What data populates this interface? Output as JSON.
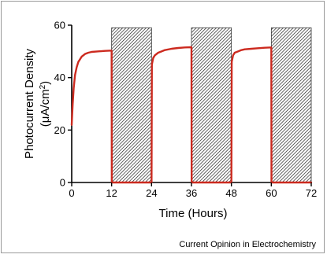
{
  "chart_data": {
    "type": "line",
    "xlabel": "Time (Hours)",
    "ylabel_line1": "Photocurrent Density",
    "ylabel_line2_prefix": "(μA/cm",
    "ylabel_line2_sup": "2",
    "ylabel_line2_suffix": ")",
    "xlim": [
      0,
      72
    ],
    "ylim": [
      0,
      60
    ],
    "x_ticks": [
      0,
      12,
      24,
      36,
      48,
      60,
      72
    ],
    "y_ticks": [
      0,
      20,
      40,
      60
    ],
    "grid": false,
    "dark_periods": [
      [
        12,
        24
      ],
      [
        36,
        48
      ],
      [
        60,
        72
      ]
    ],
    "dark_period_top": 59,
    "series": [
      {
        "color": "#cc2a1f",
        "x": [
          0,
          0.3,
          0.6,
          1.0,
          1.5,
          2.0,
          3.0,
          4.0,
          5.0,
          6.0,
          8.0,
          10.0,
          11.9,
          12,
          12.05,
          24,
          24.1,
          24.5,
          25,
          26,
          27,
          28,
          30,
          32,
          34,
          35.9,
          36,
          36.05,
          48,
          48.1,
          48.5,
          49,
          50,
          51,
          52,
          54,
          56,
          58,
          59.9,
          60,
          60.05,
          72
        ],
        "y": [
          22,
          30,
          36,
          41,
          44,
          46,
          48,
          49,
          49.5,
          49.8,
          50,
          50.2,
          50.3,
          50.3,
          0,
          0,
          45,
          47.5,
          48.5,
          49.5,
          50,
          50.5,
          51,
          51.3,
          51.5,
          51.6,
          51.6,
          0,
          0,
          46,
          48.5,
          49.5,
          50,
          50.5,
          50.8,
          51,
          51.2,
          51.4,
          51.5,
          51.5,
          0,
          0
        ]
      }
    ]
  },
  "credit": "Current Opinion in Electrochemistry"
}
